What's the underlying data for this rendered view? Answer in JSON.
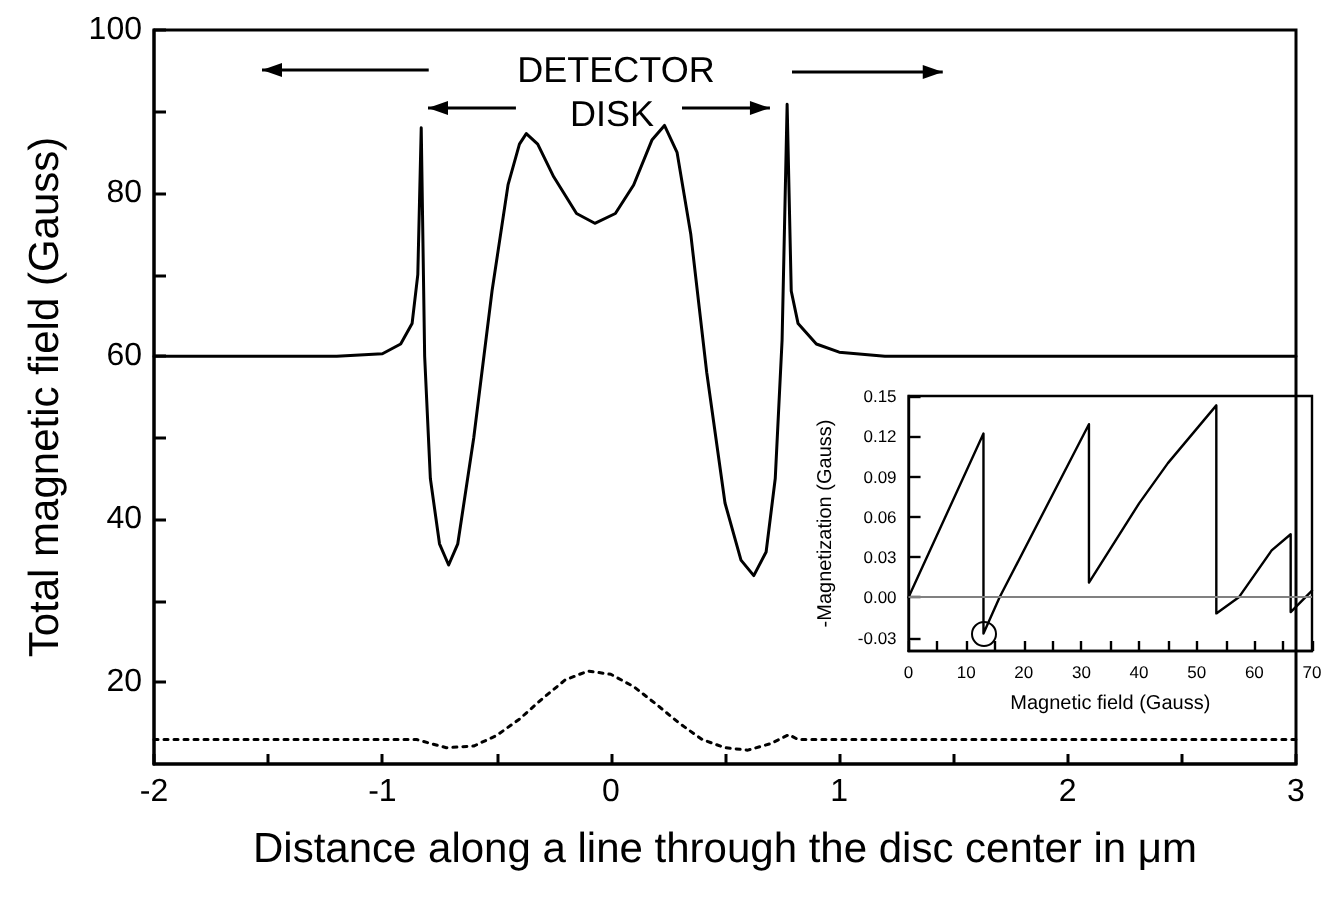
{
  "chart_data": [
    {
      "type": "line",
      "xlabel": "Distance along a line through the disc center in μm",
      "ylabel": "Total magnetic field (Gauss)",
      "xlim": [
        -2,
        3
      ],
      "ylim": [
        10,
        100
      ],
      "xticks": [
        -2,
        {
          "value": -1.5,
          "label": null
        },
        -1,
        {
          "value": -0.5,
          "label": null
        },
        0,
        {
          "value": 0.5,
          "label": null
        },
        1,
        {
          "value": 1.5,
          "label": null
        },
        2,
        {
          "value": 2.5,
          "label": null
        },
        3
      ],
      "yticks": [
        20,
        {
          "value": 30,
          "label": null
        },
        40,
        {
          "value": 50,
          "label": null
        },
        60,
        {
          "value": 70,
          "label": null
        },
        80,
        {
          "value": 90,
          "label": null
        },
        100
      ],
      "grid": false,
      "marker": "none",
      "annotations": [
        "DETECTOR",
        "DISK"
      ],
      "series": [
        {
          "color": "#000000",
          "line_style": "solid",
          "x": [
            -2,
            -1.2,
            -1.0,
            -0.92,
            -0.87,
            -0.845,
            -0.83,
            -0.815,
            -0.79,
            -0.75,
            -0.71,
            -0.67,
            -0.6,
            -0.52,
            -0.45,
            -0.4,
            -0.37,
            -0.32,
            -0.25,
            -0.15,
            -0.07,
            0.02,
            0.1,
            0.18,
            0.235,
            0.29,
            0.35,
            0.42,
            0.5,
            0.57,
            0.626,
            0.68,
            0.72,
            0.75,
            0.772,
            0.79,
            0.82,
            0.9,
            1.0,
            1.2,
            3
          ],
          "values": [
            60,
            60,
            60.3,
            61.5,
            64,
            70,
            88,
            60,
            45,
            37,
            34.4,
            37,
            50,
            68,
            81,
            86,
            87.3,
            86,
            82,
            77.5,
            76.3,
            77.5,
            81,
            86.5,
            88.3,
            85,
            75,
            58,
            42,
            35,
            33.1,
            36,
            45,
            62,
            90.9,
            68,
            64,
            61.5,
            60.5,
            60,
            60
          ]
        },
        {
          "color": "#000000",
          "line_style": "dotted",
          "x": [
            -2,
            -0.85,
            -0.8,
            -0.72,
            -0.6,
            -0.5,
            -0.4,
            -0.3,
            -0.2,
            -0.1,
            0,
            0.1,
            0.2,
            0.3,
            0.4,
            0.5,
            0.6,
            0.7,
            0.78,
            0.82,
            3
          ],
          "values": [
            13,
            13,
            12.6,
            12,
            12.2,
            13.5,
            15.5,
            18,
            20.3,
            21.4,
            21,
            19.5,
            17.3,
            15,
            13,
            12,
            11.7,
            12.5,
            13.6,
            13,
            13
          ]
        }
      ]
    },
    {
      "type": "line",
      "xlabel": "Magnetic field (Gauss)",
      "ylabel": "-Magnetization (Gauss)",
      "xlim": [
        0,
        70
      ],
      "ylim": [
        -0.04,
        0.15
      ],
      "xticks": [
        0,
        {
          "value": 5,
          "label": null
        },
        10,
        {
          "value": 15,
          "label": null
        },
        20,
        {
          "value": 25,
          "label": null
        },
        30,
        {
          "value": 35,
          "label": null
        },
        40,
        {
          "value": 45,
          "label": null
        },
        50,
        {
          "value": 55,
          "label": null
        },
        60,
        {
          "value": 65,
          "label": null
        },
        70
      ],
      "yticks": [
        {
          "value": -0.03,
          "label": "-0.03"
        },
        {
          "value": 0,
          "label": "0.00"
        },
        {
          "value": 0.03,
          "label": "0.03"
        },
        {
          "value": 0.06,
          "label": "0.06"
        },
        {
          "value": 0.09,
          "label": "0.09"
        },
        {
          "value": 0.12,
          "label": "0.12"
        },
        {
          "value": 0.15,
          "label": "0.15"
        }
      ],
      "grid": false,
      "marker": "none",
      "ref_lines": [
        {
          "axis": "y",
          "value": 0,
          "color": "#808080"
        }
      ],
      "series": [
        {
          "color": "#000000",
          "line_style": "solid",
          "x": [
            0,
            13,
            13,
            15.8,
            31.3,
            31.3,
            40,
            45,
            53.4,
            53.4,
            57.3,
            63,
            66.3,
            66.3,
            70
          ],
          "values": [
            0,
            0.122,
            -0.027,
            0,
            0.129,
            0.011,
            0.07,
            0.1,
            0.143,
            -0.012,
            0,
            0.035,
            0.047,
            -0.011,
            0.005
          ]
        }
      ]
    }
  ]
}
